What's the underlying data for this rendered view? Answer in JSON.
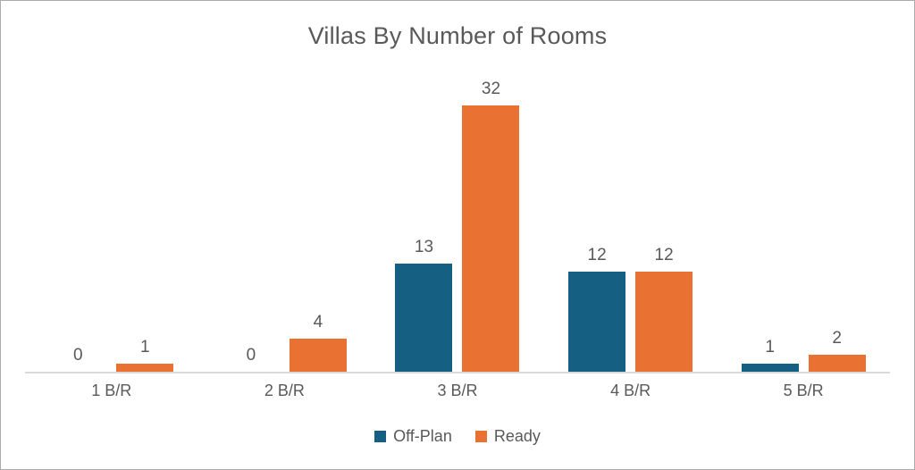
{
  "chart_data": {
    "type": "bar",
    "title": "Villas By Number of Rooms",
    "categories": [
      "1 B/R",
      "2 B/R",
      "3 B/R",
      "4 B/R",
      "5 B/R"
    ],
    "series": [
      {
        "name": "Off-Plan",
        "color": "#156082",
        "values": [
          0,
          0,
          13,
          12,
          1
        ]
      },
      {
        "name": "Ready",
        "color": "#E97132",
        "values": [
          1,
          4,
          32,
          12,
          2
        ]
      }
    ],
    "xlabel": "",
    "ylabel": "",
    "ylim": [
      0,
      35.6
    ],
    "grid": false,
    "y_axis_visible": false,
    "data_labels": true,
    "legend_position": "bottom"
  },
  "colors": {
    "title_text": "#595959",
    "label_text": "#595959",
    "axis_line": "#D9D9D9",
    "frame_border": "#ABABAB",
    "background": "#FFFFFF"
  }
}
